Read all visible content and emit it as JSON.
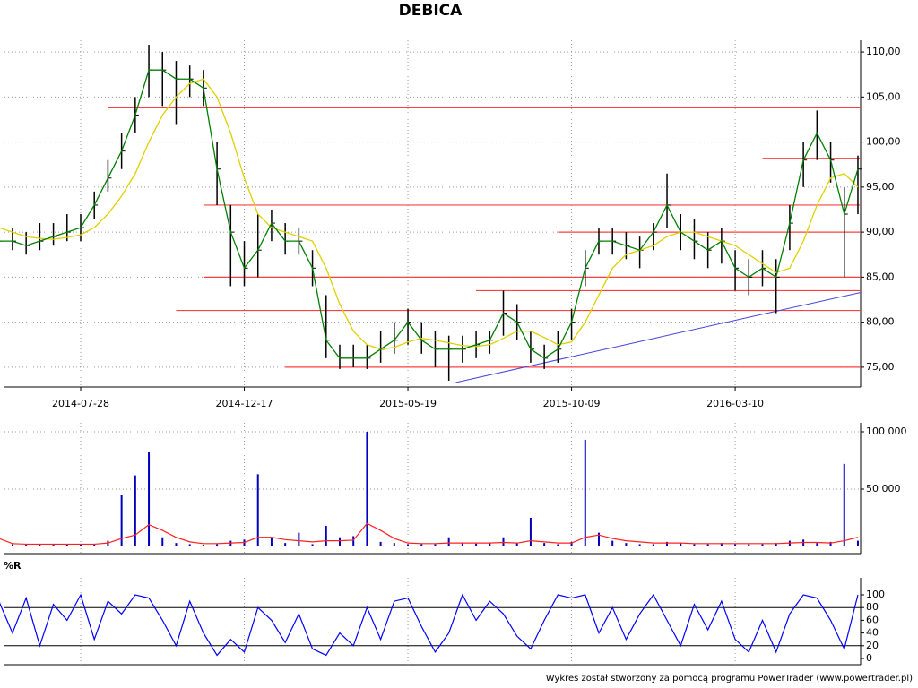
{
  "chart_data": [
    {
      "type": "hlc",
      "title": "DEBICA",
      "categories": [
        null,
        null,
        null,
        null,
        null,
        null,
        "2014-07-28",
        null,
        null,
        null,
        null,
        null,
        null,
        null,
        null,
        null,
        null,
        null,
        "2014-12-17",
        null,
        null,
        null,
        null,
        null,
        null,
        null,
        null,
        null,
        null,
        null,
        "2015-05-19",
        null,
        null,
        null,
        null,
        null,
        null,
        null,
        null,
        null,
        null,
        null,
        "2015-10-09",
        null,
        null,
        null,
        null,
        null,
        null,
        null,
        null,
        null,
        null,
        null,
        "2016-03-10",
        null,
        null,
        null,
        null,
        null,
        null,
        null,
        null,
        null
      ],
      "high": [
        90.5,
        90.5,
        90,
        91,
        91,
        92,
        92,
        94.5,
        98,
        101,
        105,
        110.8,
        110,
        109,
        108.5,
        108,
        100,
        93,
        89,
        92,
        92.5,
        91,
        90.5,
        88,
        83,
        77.5,
        77.5,
        77.5,
        79,
        80,
        81.5,
        80,
        79,
        78.5,
        78.5,
        79,
        79,
        83.5,
        82,
        79,
        77.5,
        79,
        81.5,
        88,
        90.5,
        90.5,
        90,
        89.5,
        91,
        96.5,
        92,
        91.5,
        90,
        90.5,
        88,
        87,
        88,
        87,
        93,
        100,
        103.5,
        100,
        95,
        98.5
      ],
      "low": [
        88,
        88,
        87.5,
        88,
        88.5,
        89,
        89,
        91.5,
        94.5,
        97,
        101,
        105,
        104,
        102,
        105,
        104,
        93,
        84,
        84,
        85,
        89,
        87.5,
        87.5,
        84,
        76,
        74.8,
        75,
        74.8,
        75.5,
        76.5,
        77.5,
        76.5,
        75,
        73.5,
        75.5,
        76,
        76.5,
        78.5,
        78,
        75.5,
        74.8,
        75.5,
        78,
        84,
        87.5,
        87.5,
        87,
        86,
        88,
        90.5,
        88,
        87,
        86,
        86.5,
        83.5,
        83,
        84,
        81,
        88,
        95,
        98,
        95.5,
        85,
        92
      ],
      "close": [
        89,
        89,
        88.5,
        89,
        89.5,
        90,
        90.5,
        93,
        96,
        99,
        103,
        108,
        108,
        107,
        107,
        106,
        97,
        90,
        86,
        88,
        91,
        89,
        89,
        86,
        78,
        76,
        76,
        76,
        77,
        78,
        80,
        78,
        77,
        77,
        77,
        77.5,
        78,
        81,
        80,
        77,
        76,
        77,
        80,
        86,
        89,
        89,
        88.5,
        88,
        90,
        93,
        90,
        89,
        88,
        89,
        86,
        85,
        86,
        85,
        91,
        98,
        101,
        98,
        92,
        97
      ],
      "bar_color": "#000000",
      "close_color": "#008000",
      "ma": {
        "color": "#e0d000",
        "values": [
          90.5,
          90,
          89.5,
          89.3,
          89.2,
          89.4,
          89.7,
          90.5,
          92,
          94,
          96.5,
          100,
          103,
          105,
          106.5,
          107,
          105,
          101,
          96,
          92,
          90.5,
          90,
          89.5,
          89,
          86,
          82,
          79,
          77.5,
          77,
          77.2,
          77.8,
          78.2,
          78,
          77.7,
          77.4,
          77.3,
          77.5,
          78.2,
          79,
          79,
          78.3,
          77.5,
          77.8,
          80,
          83,
          86,
          87.5,
          88,
          88.5,
          89.5,
          90,
          90,
          89.5,
          89,
          88.5,
          87.5,
          86.5,
          85.5,
          86,
          89,
          93,
          96,
          96.5,
          95
        ]
      },
      "levels": [
        {
          "value": 103.8,
          "from": 8
        },
        {
          "value": 98.2,
          "from": 56
        },
        {
          "value": 93,
          "from": 15
        },
        {
          "value": 90,
          "from": 41
        },
        {
          "value": 85,
          "from": 15
        },
        {
          "value": 83.5,
          "from": 35
        },
        {
          "value": 81.3,
          "from": 13
        },
        {
          "value": 75,
          "from": 21
        }
      ],
      "level_color": "#ff4040",
      "trend_line": {
        "color": "#4444dd",
        "x": [
          33.5,
          63.2
        ],
        "y": [
          73.3,
          83.3
        ]
      },
      "ylim": [
        72.8,
        111.3
      ],
      "yticks": [
        {
          "value": 75,
          "label": "75,00"
        },
        {
          "value": 80,
          "label": "80,00"
        },
        {
          "value": 85,
          "label": "85,00"
        },
        {
          "value": 90,
          "label": "90,00"
        },
        {
          "value": 95,
          "label": "95,00"
        },
        {
          "value": 100,
          "label": "100,00"
        },
        {
          "value": 105,
          "label": "105,00"
        },
        {
          "value": 110,
          "label": "110,00"
        }
      ],
      "grid": true
    },
    {
      "type": "volume",
      "values": [
        6000,
        2000,
        1500,
        1500,
        1500,
        2000,
        1500,
        2000,
        5000,
        45000,
        62000,
        82000,
        8000,
        3000,
        2000,
        1500,
        2000,
        5000,
        6000,
        63000,
        8000,
        3000,
        12000,
        2000,
        18000,
        8000,
        9000,
        100000,
        4000,
        3000,
        2000,
        2000,
        2000,
        8000,
        3000,
        2500,
        3000,
        8000,
        3000,
        25000,
        3000,
        2000,
        4000,
        93000,
        12000,
        5000,
        3000,
        2000,
        2000,
        4000,
        3000,
        2000,
        2000,
        3000,
        2000,
        2000,
        2000,
        3000,
        5000,
        6000,
        3000,
        4000,
        72000,
        5000
      ],
      "color": "#0000c0",
      "ma": {
        "color": "#ff2020",
        "values": [
          7000,
          2500,
          2000,
          2000,
          2000,
          2000,
          2000,
          2000,
          3000,
          7000,
          10000,
          19000,
          14000,
          8000,
          4000,
          2500,
          2500,
          3000,
          3500,
          8000,
          8000,
          6000,
          5000,
          4000,
          5000,
          5000,
          5500,
          20000,
          14000,
          7000,
          3000,
          2500,
          2500,
          3000,
          3000,
          3000,
          3000,
          3500,
          3000,
          5000,
          4000,
          3000,
          3000,
          8000,
          10000,
          7000,
          5000,
          4000,
          3000,
          3000,
          3000,
          2500,
          2500,
          2500,
          2500,
          2500,
          2500,
          2500,
          3000,
          3500,
          3500,
          3000,
          5000,
          8000
        ]
      },
      "ylim": [
        0,
        107800
      ],
      "yticks": [
        {
          "value": 50000,
          "label": "50 000"
        },
        {
          "value": 100000,
          "label": "100 000"
        }
      ],
      "grid": true
    },
    {
      "type": "line",
      "title": "%R",
      "values": [
        90,
        40,
        95,
        20,
        85,
        60,
        100,
        30,
        90,
        70,
        100,
        95,
        60,
        20,
        90,
        40,
        5,
        30,
        10,
        80,
        60,
        25,
        70,
        15,
        5,
        40,
        20,
        80,
        30,
        90,
        95,
        50,
        10,
        40,
        100,
        60,
        90,
        70,
        35,
        15,
        60,
        100,
        95,
        100,
        40,
        80,
        30,
        70,
        100,
        60,
        20,
        85,
        45,
        90,
        30,
        10,
        60,
        10,
        70,
        100,
        95,
        60,
        15,
        100
      ],
      "color": "#0000ff",
      "levels": [
        20,
        80
      ],
      "ylim": [
        0,
        100
      ],
      "yticks": [
        0,
        20,
        40,
        60,
        80,
        100
      ]
    }
  ],
  "footer": "Wykres został stworzony za pomocą programu PowerTrader (www.powertrader.pl)"
}
